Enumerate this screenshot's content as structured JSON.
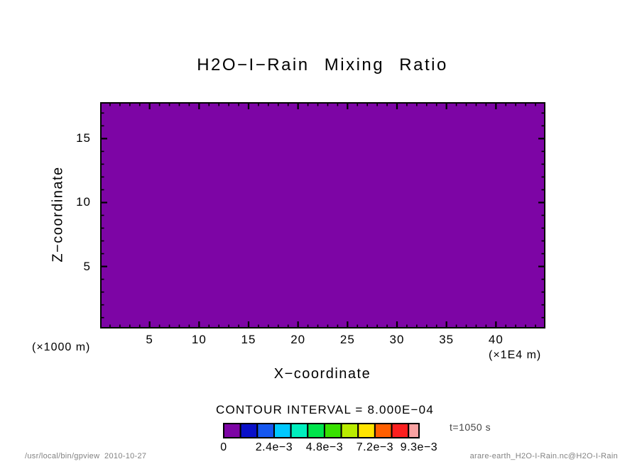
{
  "chart_data": {
    "type": "heatmap",
    "title": "H2O−I−Rain Mixing Ratio",
    "xlabel": "X−coordinate",
    "ylabel": "Z−coordinate",
    "x_unit": "(×1E4 m)",
    "y_unit": "(×1000 m)",
    "xlim": [
      0,
      45
    ],
    "ylim": [
      0.15,
      17.85
    ],
    "x_major_ticks": [
      5,
      10,
      15,
      20,
      25,
      30,
      35,
      40
    ],
    "x_minor_step": 1,
    "y_major_ticks": [
      5,
      10,
      15
    ],
    "y_minor_step": 1,
    "grid": false,
    "legend_position": "bottom",
    "field": {
      "uniform": true,
      "bin_range": [
        0,
        0.0008
      ],
      "fill_color": "#7d05a5"
    },
    "contour_interval_text": "CONTOUR INTERVAL = 8.000E−04",
    "colorbar": {
      "levels": [
        0,
        0.0008,
        0.0016,
        0.0024,
        0.0032,
        0.004,
        0.0048,
        0.0056,
        0.0064,
        0.0072,
        0.008,
        0.0088,
        0.0093
      ],
      "colors": [
        "#7d05a5",
        "#0a10c8",
        "#1557f0",
        "#00c8ff",
        "#00efbe",
        "#00e44b",
        "#38e000",
        "#b9ec00",
        "#ffe400",
        "#ff5f00",
        "#fb2020",
        "#f9a2a2"
      ],
      "tick_labels": [
        {
          "value": 0,
          "text": "0"
        },
        {
          "value": 0.0024,
          "text": "2.4e−3"
        },
        {
          "value": 0.0048,
          "text": "4.8e−3"
        },
        {
          "value": 0.0072,
          "text": "7.2e−3"
        },
        {
          "value": 0.0093,
          "text": "9.3e−3"
        }
      ]
    },
    "time_label": "t=1050 s"
  },
  "footer": {
    "left": "/usr/local/bin/gpview  2010-10-27",
    "right": "arare-earth_H2O-I-Rain.nc@H2O-I-Rain"
  }
}
